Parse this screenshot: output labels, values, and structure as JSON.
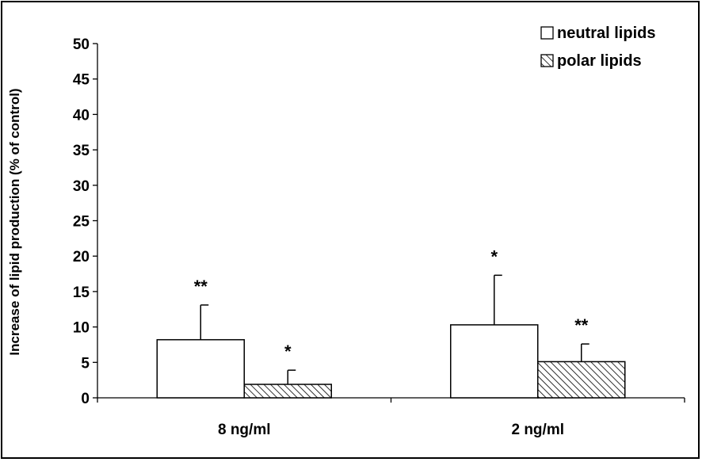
{
  "chart_data": {
    "type": "bar",
    "categories": [
      "8 ng/ml",
      "2 ng/ml"
    ],
    "series": [
      {
        "name": "neutral lipids",
        "values": [
          8.2,
          10.3
        ],
        "errors": [
          4.9,
          7.0
        ],
        "significance": [
          "**",
          "*"
        ],
        "fill": "#ffffff"
      },
      {
        "name": "polar lipids",
        "values": [
          1.9,
          5.1
        ],
        "errors": [
          2.0,
          2.5
        ],
        "significance": [
          "*",
          "**"
        ],
        "fill": "hatched"
      }
    ],
    "ylabel": "Increase of lipid production (% of control)",
    "xlabel": "",
    "ylim": [
      0,
      50
    ],
    "yticks": [
      0,
      5,
      10,
      15,
      20,
      25,
      30,
      35,
      40,
      45,
      50
    ],
    "grid": false,
    "legend_position": "top-right"
  }
}
